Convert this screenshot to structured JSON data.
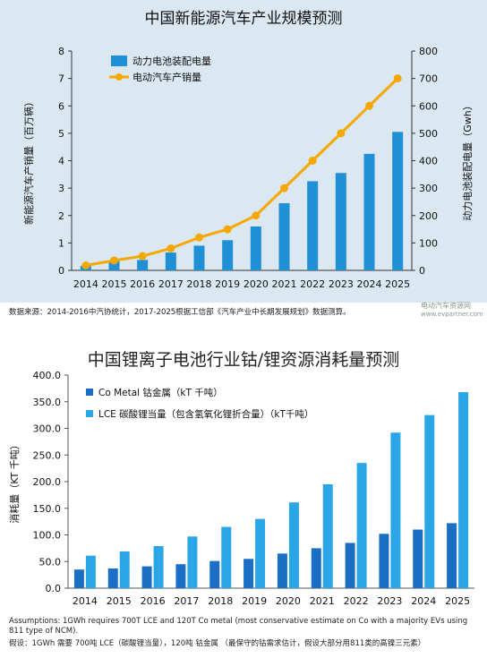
{
  "chart_data": [
    {
      "type": "bar+line",
      "title": "中国新能源汽车产业规模预测",
      "categories": [
        "2014",
        "2015",
        "2016",
        "2017",
        "2018",
        "2019",
        "2020",
        "2021",
        "2022",
        "2023",
        "2024",
        "2025"
      ],
      "ylabel_left": "新能源汽车产销量（百万辆）",
      "ylabel_right": "动力电池装配电量（Gwh）",
      "ylim_left": [
        0,
        8
      ],
      "ylim_right": [
        0,
        800
      ],
      "yticks_left": [
        "0",
        "1",
        "2",
        "3",
        "4",
        "5",
        "6",
        "7",
        "8"
      ],
      "yticks_right": [
        "0",
        "100",
        "200",
        "300",
        "400",
        "500",
        "600",
        "700",
        "800"
      ],
      "legend_placement": "top-left",
      "grid": false,
      "series": [
        {
          "name": "动力电池装配电量",
          "kind": "bar",
          "axis": "right",
          "color": "#1f8fd6",
          "values": [
            16,
            35,
            38,
            65,
            90,
            110,
            160,
            245,
            325,
            355,
            425,
            505
          ]
        },
        {
          "name": "电动汽车产销量",
          "kind": "line",
          "axis": "left",
          "color": "#f5a800",
          "values": [
            0.18,
            0.36,
            0.52,
            0.8,
            1.2,
            1.5,
            2.0,
            3.0,
            4.0,
            5.0,
            6.0,
            7.0
          ]
        }
      ]
    },
    {
      "type": "bar",
      "title": "中国锂离子电池行业钴/锂资源消耗量预测",
      "categories": [
        "2014",
        "2015",
        "2016",
        "2017",
        "2018",
        "2019",
        "2020",
        "2021",
        "2022",
        "2023",
        "2024",
        "2025"
      ],
      "ylabel": "消耗量（KT 千吨）",
      "ylim": [
        0,
        400
      ],
      "yticks": [
        "0.0",
        "50.0",
        "100.0",
        "150.0",
        "200.0",
        "250.0",
        "300.0",
        "350.0",
        "400.0"
      ],
      "legend_placement": "top-left",
      "grid": false,
      "series": [
        {
          "name": "Co Metal 钴金属（kT 千吨）",
          "color": "#1a6fc4",
          "values": [
            35,
            37,
            41,
            45,
            51,
            55,
            65,
            75,
            85,
            102,
            110,
            122
          ]
        },
        {
          "name": "LCE 碳酸锂当量（包含氢氧化锂折合量）（kT千吨）",
          "color": "#2aa5e6",
          "values": [
            61,
            69,
            79,
            97,
            115,
            130,
            161,
            195,
            235,
            292,
            325,
            368
          ]
        }
      ]
    }
  ],
  "notes": {
    "source1": "数据来源：2014-2016中汽协统计，2017-2025根据工信部《汽车产业中长期发展规划》数据测算。",
    "assumption_en": "Assumptions: 1GWh requires 700T LCE and 120T Co metal (most conservative estimate on Co with a majority EVs using 811 type of NCM).",
    "assumption_cn": "假设：1GWh 需要 700吨 LCE（碳酸锂当量），120吨 钴金属 （最保守的钴需求估计，假设大部分用811类的高镍三元素）",
    "logo_text": "电动汽车资源网",
    "logo_url": "www.evpartner.com"
  }
}
